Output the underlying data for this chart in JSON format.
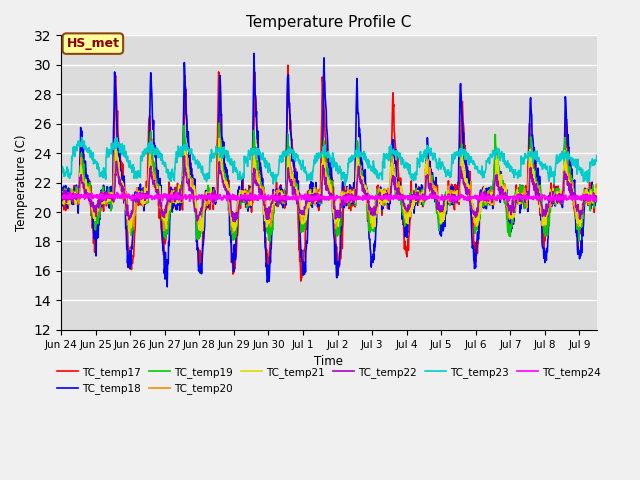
{
  "title": "Temperature Profile C",
  "xlabel": "Time",
  "ylabel": "Temperature (C)",
  "ylim": [
    12,
    32
  ],
  "yticks": [
    12,
    14,
    16,
    18,
    20,
    22,
    24,
    26,
    28,
    30,
    32
  ],
  "annotation": "HS_met",
  "bg_color": "#dcdcdc",
  "fig_bg_color": "#f0f0f0",
  "series_colors": {
    "TC_temp17": "#ff0000",
    "TC_temp18": "#0000ff",
    "TC_temp19": "#00cc00",
    "TC_temp20": "#ff8800",
    "TC_temp21": "#dddd00",
    "TC_temp22": "#aa00cc",
    "TC_temp23": "#00cccc",
    "TC_temp24": "#ff00ff"
  },
  "linewidth": 1.2,
  "n_points": 1500,
  "start_day": 0,
  "end_day": 15.5,
  "xtick_labels": [
    "Jun 24",
    "Jun 25",
    "Jun 26",
    "Jun 27",
    "Jun 28",
    "Jun 29",
    "Jun 30",
    "Jul 1",
    "Jul 2",
    "Jul 3",
    "Jul 4",
    "Jul 5",
    "Jul 6",
    "Jul 7",
    "Jul 8",
    "Jul 9"
  ],
  "xtick_positions": [
    0,
    1,
    2,
    3,
    4,
    5,
    6,
    7,
    8,
    9,
    10,
    11,
    12,
    13,
    14,
    15
  ]
}
